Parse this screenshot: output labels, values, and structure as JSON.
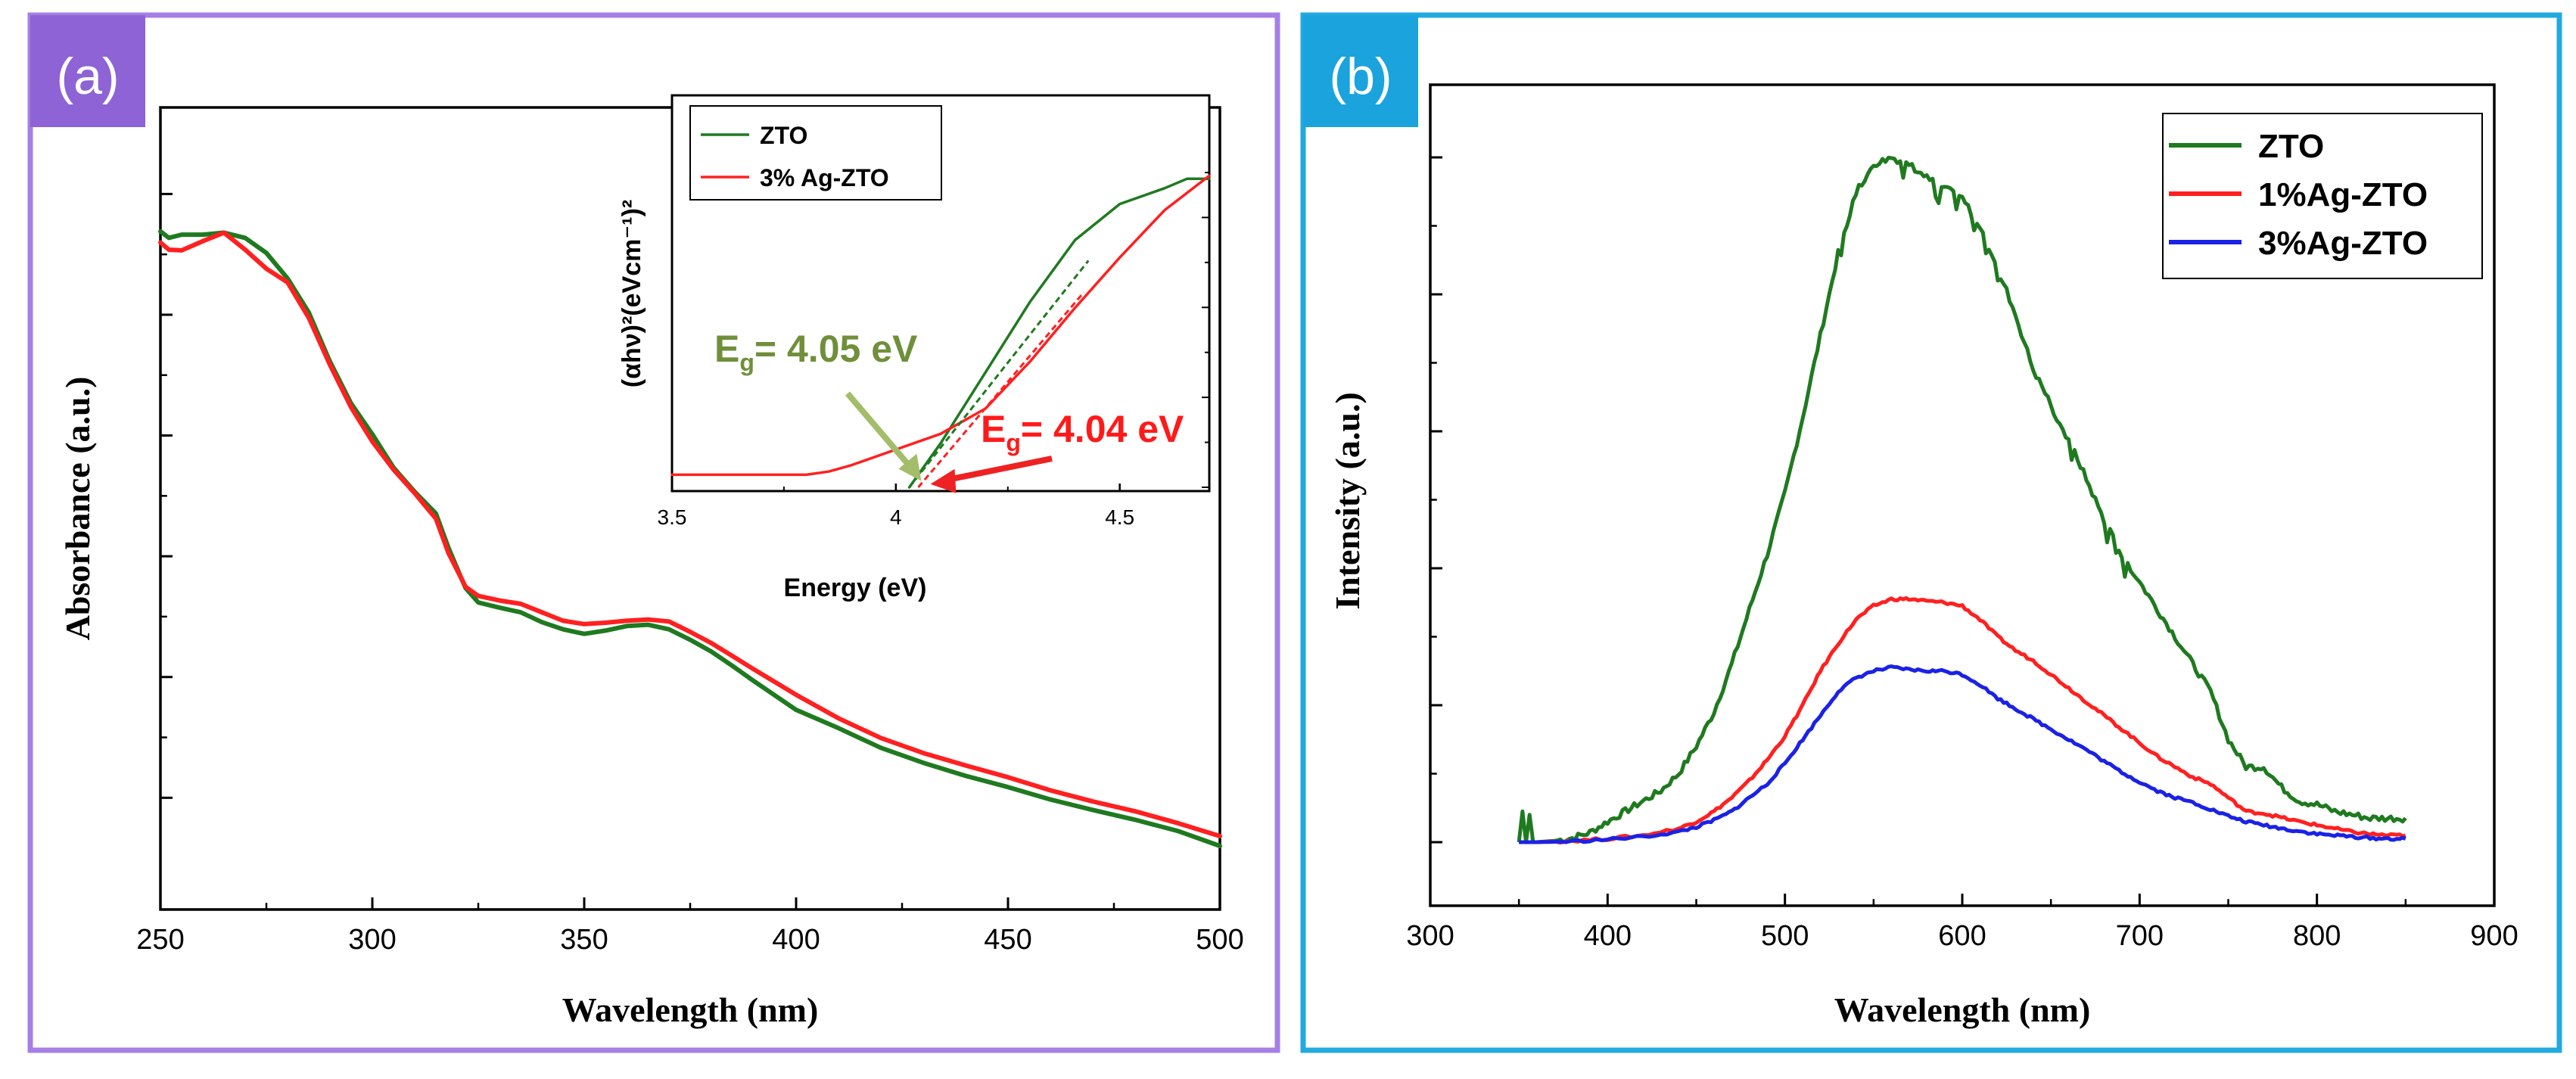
{
  "colors": {
    "panel_a_border": "#a67fe6",
    "panel_b_border": "#22a9e0",
    "badge_a_bg": "#8e63d6",
    "badge_b_bg": "#1aa3dc",
    "zto": "#1f7a1f",
    "ag1": "#ff2020",
    "ag3": "#1a22e6",
    "eg_zto_text": "#6f8f3a",
    "eg_ag_text": "#ff1a1a",
    "eg_zto_arrow": "#a3bd6a",
    "eg_ag_arrow": "#ee2222"
  },
  "chart_data": [
    {
      "id": "a",
      "panel_label": "(a)",
      "type": "line",
      "title": "",
      "xlabel": "Wavelength (nm)",
      "ylabel": "Absorbance (a.u.)",
      "xlim": [
        250,
        500
      ],
      "ylim": [
        0,
        1
      ],
      "xticks": [
        250,
        300,
        350,
        400,
        450,
        500
      ],
      "yticks_unlabeled": [
        0.0736,
        0.2581,
        0.4426,
        0.6271,
        0.8116,
        0.9961
      ],
      "series": [
        {
          "name": "ZTO",
          "color": "zto",
          "x": [
            250,
            252,
            255,
            260,
            265,
            270,
            275,
            280,
            285,
            290,
            295,
            300,
            305,
            310,
            315,
            318,
            322,
            325,
            330,
            335,
            340,
            345,
            350,
            355,
            360,
            365,
            370,
            375,
            380,
            385,
            390,
            400,
            410,
            420,
            430,
            440,
            450,
            460,
            470,
            480,
            490,
            500
          ],
          "y": [
            0.939,
            0.929,
            0.934,
            0.934,
            0.937,
            0.929,
            0.906,
            0.867,
            0.815,
            0.74,
            0.676,
            0.629,
            0.578,
            0.541,
            0.508,
            0.455,
            0.394,
            0.372,
            0.364,
            0.357,
            0.342,
            0.331,
            0.324,
            0.329,
            0.336,
            0.338,
            0.331,
            0.315,
            0.297,
            0.275,
            0.252,
            0.208,
            0.18,
            0.15,
            0.127,
            0.107,
            0.09,
            0.071,
            0.055,
            0.04,
            0.023,
            0.0
          ]
        },
        {
          "name": "3% Ag-ZTO",
          "color": "ag1",
          "x": [
            250,
            252,
            255,
            260,
            265,
            270,
            275,
            280,
            285,
            290,
            295,
            300,
            305,
            310,
            315,
            318,
            322,
            325,
            330,
            335,
            340,
            345,
            350,
            355,
            360,
            365,
            370,
            375,
            380,
            385,
            390,
            400,
            410,
            420,
            430,
            440,
            450,
            460,
            470,
            480,
            490,
            500
          ],
          "y": [
            0.922,
            0.911,
            0.91,
            0.924,
            0.937,
            0.911,
            0.882,
            0.861,
            0.807,
            0.735,
            0.67,
            0.618,
            0.575,
            0.539,
            0.5,
            0.447,
            0.396,
            0.382,
            0.375,
            0.37,
            0.357,
            0.344,
            0.339,
            0.341,
            0.344,
            0.346,
            0.343,
            0.327,
            0.31,
            0.29,
            0.27,
            0.231,
            0.195,
            0.165,
            0.142,
            0.123,
            0.105,
            0.085,
            0.068,
            0.053,
            0.035,
            0.015
          ]
        }
      ],
      "inset": {
        "type": "line",
        "xlabel": "Energy (eV)",
        "ylabel": "(αhν)²(eVcm⁻¹)²",
        "xlim": [
          3.5,
          4.7
        ],
        "ylim": [
          0,
          1
        ],
        "xticks": [
          3.5,
          4.0,
          4.5
        ],
        "legend": [
          "ZTO",
          "3% Ag-ZTO"
        ],
        "series": [
          {
            "name": "ZTO",
            "color": "zto",
            "x": [
              4.03,
              4.1,
              4.2,
              4.3,
              4.4,
              4.5,
              4.6,
              4.65,
              4.7
            ],
            "y": [
              0.0,
              0.14,
              0.365,
              0.59,
              0.785,
              0.9,
              0.95,
              0.98,
              0.98
            ]
          },
          {
            "name": "3% Ag-ZTO",
            "color": "ag1",
            "x": [
              3.5,
              3.7,
              3.8,
              3.85,
              3.9,
              4.0,
              4.1,
              4.2,
              4.3,
              4.4,
              4.5,
              4.6,
              4.7
            ],
            "y": [
              0.04,
              0.04,
              0.04,
              0.05,
              0.07,
              0.12,
              0.17,
              0.25,
              0.4,
              0.57,
              0.73,
              0.88,
              0.99
            ]
          }
        ],
        "annotations": [
          {
            "name": "eg-zto",
            "text_main": "E",
            "text_sub": "g",
            "text_rest": "= 4.05 eV",
            "color": "eg_zto_text",
            "arrow_color": "eg_zto_arrow",
            "value": 4.05
          },
          {
            "name": "eg-ag",
            "text_main": "E",
            "text_sub": "g",
            "text_rest": "= 4.04 eV",
            "color": "eg_ag_text",
            "arrow_color": "eg_ag_arrow",
            "value": 4.04
          }
        ]
      }
    },
    {
      "id": "b",
      "panel_label": "(b)",
      "type": "line",
      "title": "",
      "xlabel": "Wavelength (nm)",
      "ylabel": "Intensity (a.u.)",
      "xlim": [
        300,
        900
      ],
      "ylim": [
        0,
        1.1
      ],
      "xticks": [
        300,
        400,
        500,
        600,
        700,
        800,
        900
      ],
      "yticks_unlabeled": [
        0.0,
        0.2,
        0.4,
        0.6,
        0.8,
        1.0
      ],
      "legend_position": "top-right",
      "series": [
        {
          "name": "ZTO",
          "color": "zto",
          "x": [
            350,
            352,
            354,
            356,
            358,
            360,
            370,
            380,
            390,
            400,
            410,
            420,
            430,
            440,
            450,
            460,
            470,
            480,
            490,
            500,
            510,
            520,
            530,
            540,
            550,
            560,
            570,
            580,
            590,
            600,
            610,
            620,
            630,
            640,
            650,
            660,
            670,
            680,
            690,
            700,
            710,
            720,
            730,
            740,
            750,
            760,
            770,
            780,
            790,
            800,
            810,
            820,
            830,
            840,
            850
          ],
          "y": [
            0.0,
            0.045,
            0.0,
            0.04,
            0.0,
            0.0,
            0.002,
            0.006,
            0.014,
            0.03,
            0.045,
            0.06,
            0.075,
            0.1,
            0.14,
            0.19,
            0.26,
            0.34,
            0.42,
            0.51,
            0.62,
            0.74,
            0.86,
            0.95,
            0.99,
            1.0,
            0.99,
            0.97,
            0.955,
            0.94,
            0.9,
            0.84,
            0.77,
            0.69,
            0.64,
            0.59,
            0.53,
            0.47,
            0.42,
            0.38,
            0.34,
            0.3,
            0.26,
            0.22,
            0.15,
            0.11,
            0.11,
            0.08,
            0.06,
            0.055,
            0.045,
            0.04,
            0.035,
            0.035,
            0.035
          ]
        },
        {
          "name": "1%Ag-ZTO",
          "color": "ag1",
          "x": [
            350,
            360,
            380,
            400,
            420,
            440,
            450,
            460,
            470,
            480,
            490,
            500,
            510,
            520,
            530,
            540,
            550,
            560,
            570,
            580,
            590,
            600,
            610,
            620,
            630,
            640,
            650,
            660,
            670,
            680,
            690,
            700,
            710,
            720,
            730,
            740,
            750,
            760,
            770,
            780,
            790,
            800,
            810,
            820,
            830,
            840,
            850
          ],
          "y": [
            0.0,
            0.0,
            0.002,
            0.005,
            0.01,
            0.02,
            0.03,
            0.045,
            0.065,
            0.09,
            0.12,
            0.155,
            0.2,
            0.25,
            0.29,
            0.325,
            0.345,
            0.355,
            0.355,
            0.352,
            0.35,
            0.345,
            0.325,
            0.3,
            0.28,
            0.265,
            0.245,
            0.225,
            0.205,
            0.185,
            0.165,
            0.145,
            0.125,
            0.11,
            0.095,
            0.085,
            0.065,
            0.045,
            0.042,
            0.036,
            0.03,
            0.025,
            0.02,
            0.015,
            0.012,
            0.01,
            0.01
          ]
        },
        {
          "name": "3%Ag-ZTO",
          "color": "ag3",
          "x": [
            350,
            360,
            380,
            400,
            420,
            440,
            450,
            460,
            470,
            480,
            490,
            500,
            510,
            520,
            530,
            540,
            550,
            560,
            570,
            580,
            590,
            600,
            610,
            620,
            630,
            640,
            650,
            660,
            670,
            680,
            690,
            700,
            710,
            720,
            730,
            740,
            750,
            760,
            770,
            780,
            790,
            800,
            810,
            820,
            830,
            840,
            850
          ],
          "y": [
            0.0,
            0.0,
            0.001,
            0.004,
            0.008,
            0.015,
            0.022,
            0.032,
            0.045,
            0.065,
            0.085,
            0.115,
            0.15,
            0.185,
            0.22,
            0.24,
            0.25,
            0.255,
            0.252,
            0.25,
            0.25,
            0.245,
            0.23,
            0.21,
            0.195,
            0.18,
            0.165,
            0.15,
            0.135,
            0.118,
            0.102,
            0.088,
            0.075,
            0.065,
            0.058,
            0.048,
            0.038,
            0.03,
            0.025,
            0.02,
            0.016,
            0.012,
            0.01,
            0.008,
            0.006,
            0.005,
            0.005
          ]
        }
      ]
    }
  ]
}
